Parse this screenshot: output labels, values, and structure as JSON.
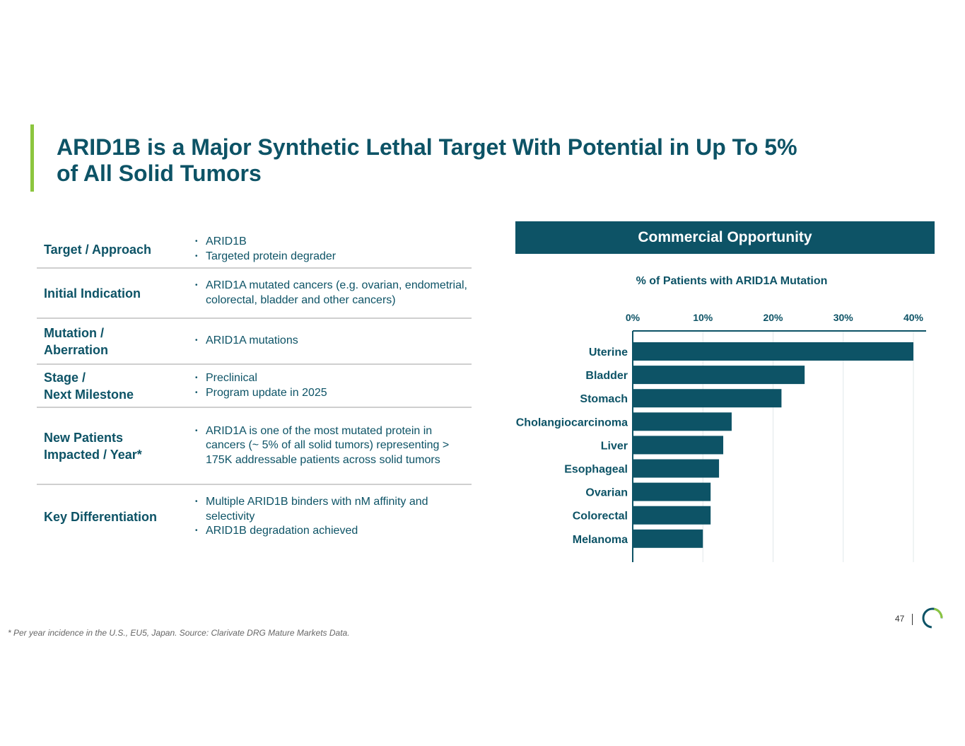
{
  "title": {
    "line1": "ARID1B is a Major Synthetic Lethal Target With Potential in Up To 5%",
    "line2": "of All Solid Tumors"
  },
  "colors": {
    "primary": "#0d5366",
    "accent": "#8cc63f",
    "rule": "#cfcfcf"
  },
  "table": {
    "rows": [
      {
        "label": [
          "Target / Approach"
        ],
        "bullets": [
          "ARID1B",
          "Targeted protein degrader"
        ]
      },
      {
        "label": [
          "Initial Indication"
        ],
        "bullets": [
          "ARID1A mutated cancers (e.g. ovarian, endometrial, colorectal, bladder and other cancers)"
        ]
      },
      {
        "label": [
          "Mutation /",
          "Aberration"
        ],
        "bullets": [
          "ARID1A mutations"
        ]
      },
      {
        "label": [
          "Stage /",
          "Next Milestone"
        ],
        "bullets": [
          "Preclinical",
          "Program update in 2025"
        ]
      },
      {
        "label": [
          "New Patients",
          "Impacted / Year*"
        ],
        "bullets": [
          "ARID1A is one of the most mutated protein in cancers (~ 5% of all solid tumors) representing > 175K addressable patients across solid tumors"
        ]
      },
      {
        "label": [
          "Key Differentiation"
        ],
        "bullets": [
          "Multiple ARID1B binders with nM affinity and selectivity",
          "ARID1B degradation achieved"
        ]
      }
    ]
  },
  "panel": {
    "header": "Commercial Opportunity"
  },
  "chart_data": {
    "type": "bar",
    "orientation": "horizontal",
    "title": "% of Patients with ARID1A Mutation",
    "categories": [
      "Uterine",
      "Bladder",
      "Stomach",
      "Cholangiocarcinoma",
      "Liver",
      "Esophageal",
      "Ovarian",
      "Colorectal",
      "Melanoma"
    ],
    "values": [
      40,
      24.5,
      21.2,
      14.1,
      12.9,
      12.3,
      11.1,
      11.1,
      10.0
    ],
    "xlim": [
      0,
      40
    ],
    "ticks": [
      "0%",
      "10%",
      "20%",
      "30%",
      "40%"
    ],
    "x_axis_position": "top",
    "grid": true,
    "legend": "none",
    "bar_color": "#0d5366"
  },
  "footnote": "* Per year incidence in the U.S., EU5, Japan. Source: Clarivate DRG Mature Markets Data.",
  "page_number": "47"
}
